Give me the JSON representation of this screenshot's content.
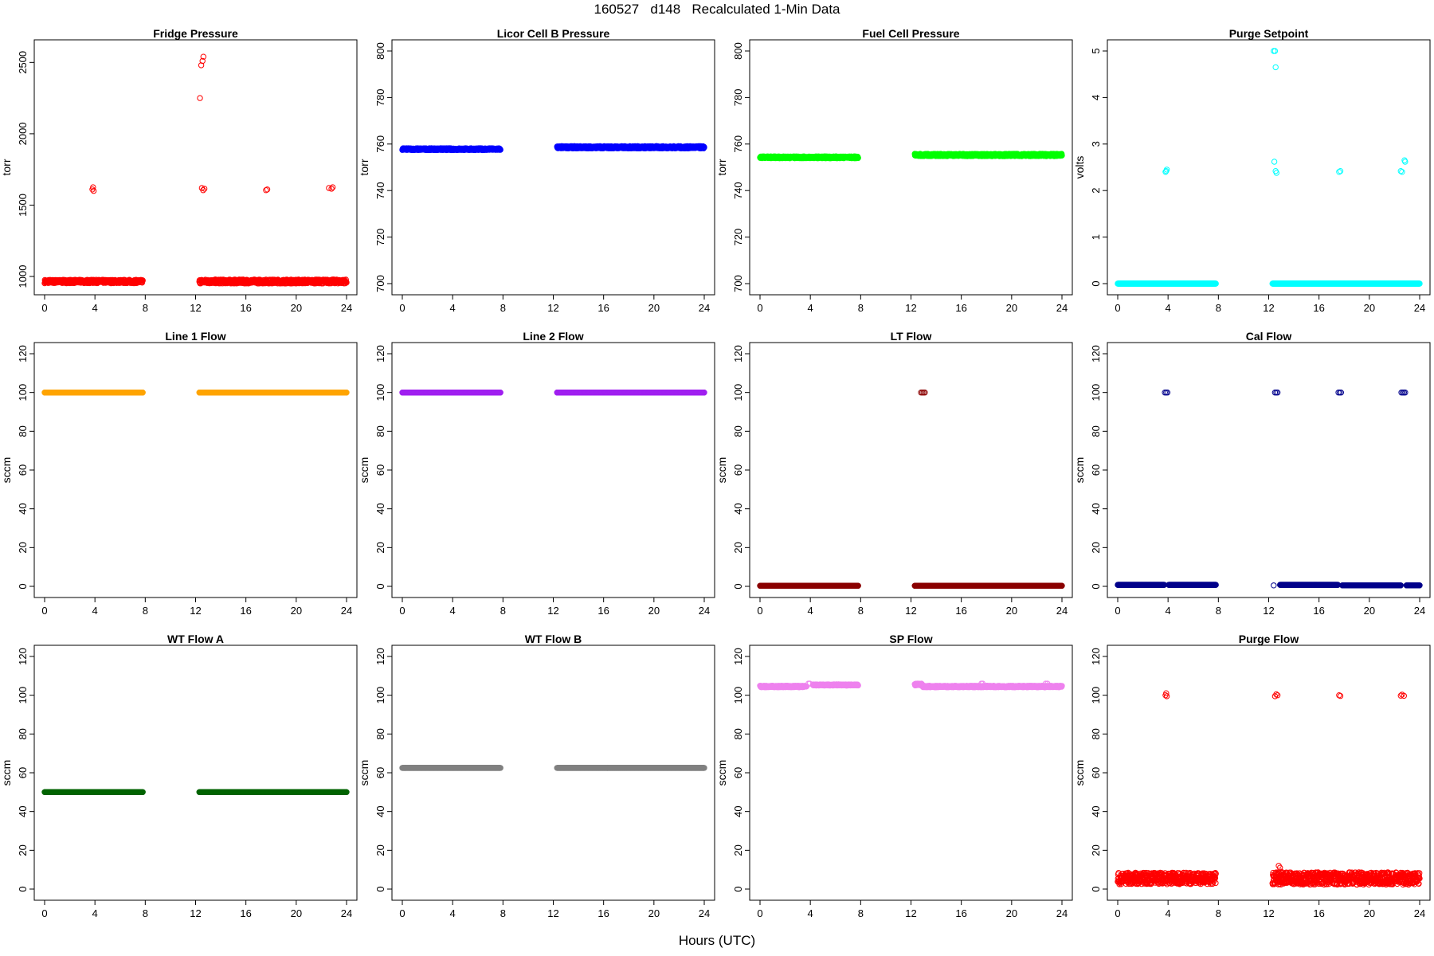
{
  "figure": {
    "title": "160527   d148   Recalculated 1-Min Data",
    "xlabel": "Hours (UTC)"
  },
  "chart_data": [
    {
      "type": "scatter",
      "title": "Fridge Pressure",
      "xlabel": "",
      "ylabel": "torr",
      "xlim": [
        0,
        24
      ],
      "ylim": [
        950,
        2580
      ],
      "xticks": [
        0,
        4,
        8,
        12,
        16,
        20,
        24
      ],
      "yticks": [
        1000,
        1500,
        2000,
        2500
      ],
      "color": "#ff0000",
      "marker": "open-circle",
      "grid": false,
      "series": [
        {
          "segments": [
            [
              0,
              7.8,
              965,
              12
            ],
            [
              12.3,
              24,
              965,
              14
            ]
          ],
          "points": [
            [
              3.8,
              1610
            ],
            [
              3.9,
              1600
            ],
            [
              3.85,
              1625
            ],
            [
              12.35,
              2250
            ],
            [
              12.45,
              2480
            ],
            [
              12.55,
              2510
            ],
            [
              12.62,
              2540
            ],
            [
              12.5,
              1620
            ],
            [
              12.6,
              1605
            ],
            [
              12.7,
              1615
            ],
            [
              17.6,
              1605
            ],
            [
              17.7,
              1610
            ],
            [
              22.6,
              1620
            ],
            [
              22.8,
              1615
            ],
            [
              22.9,
              1625
            ]
          ]
        }
      ]
    },
    {
      "type": "scatter",
      "title": "Licor Cell B Pressure",
      "xlabel": "",
      "ylabel": "torr",
      "xlim": [
        0,
        24
      ],
      "ylim": [
        700,
        800
      ],
      "xticks": [
        0,
        4,
        8,
        12,
        16,
        20,
        24
      ],
      "yticks": [
        700,
        720,
        740,
        760,
        780,
        800
      ],
      "color": "#0000ff",
      "marker": "open-circle",
      "grid": false,
      "series": [
        {
          "segments": [
            [
              0,
              7.8,
              757.8,
              0.4
            ],
            [
              12.3,
              24,
              758.6,
              0.5
            ]
          ],
          "points": []
        }
      ]
    },
    {
      "type": "scatter",
      "title": "Fuel Cell Pressure",
      "xlabel": "",
      "ylabel": "torr",
      "xlim": [
        0,
        24
      ],
      "ylim": [
        700,
        800
      ],
      "xticks": [
        0,
        4,
        8,
        12,
        16,
        20,
        24
      ],
      "yticks": [
        700,
        720,
        740,
        760,
        780,
        800
      ],
      "color": "#00ff00",
      "marker": "open-circle",
      "grid": false,
      "series": [
        {
          "segments": [
            [
              0,
              7.8,
              754.3,
              0.4
            ],
            [
              12.3,
              24,
              755.3,
              0.5
            ]
          ],
          "points": []
        }
      ]
    },
    {
      "type": "scatter",
      "title": "Purge Setpoint",
      "xlabel": "",
      "ylabel": "volts",
      "xlim": [
        0,
        24
      ],
      "ylim": [
        0,
        5
      ],
      "xticks": [
        0,
        4,
        8,
        12,
        16,
        20,
        24
      ],
      "yticks": [
        0,
        1,
        2,
        3,
        4,
        5
      ],
      "color": "#00ffff",
      "marker": "open-circle",
      "grid": false,
      "series": [
        {
          "segments": [
            [
              0,
              7.8,
              0,
              0
            ],
            [
              12.3,
              24,
              0,
              0
            ]
          ],
          "points": [
            [
              3.8,
              2.4
            ],
            [
              3.85,
              2.42
            ],
            [
              3.9,
              2.45
            ],
            [
              12.4,
              5.0
            ],
            [
              12.5,
              5.0
            ],
            [
              12.55,
              4.65
            ],
            [
              12.45,
              2.62
            ],
            [
              12.55,
              2.42
            ],
            [
              12.62,
              2.38
            ],
            [
              17.6,
              2.4
            ],
            [
              17.7,
              2.42
            ],
            [
              22.5,
              2.42
            ],
            [
              22.6,
              2.4
            ],
            [
              22.8,
              2.65
            ],
            [
              22.85,
              2.62
            ]
          ]
        }
      ]
    },
    {
      "type": "scatter",
      "title": "Line 1 Flow",
      "xlabel": "",
      "ylabel": "sccm",
      "xlim": [
        0,
        24
      ],
      "ylim": [
        0,
        120
      ],
      "xticks": [
        0,
        4,
        8,
        12,
        16,
        20,
        24
      ],
      "yticks": [
        0,
        20,
        40,
        60,
        80,
        100,
        120
      ],
      "color": "#ffa500",
      "marker": "open-circle",
      "grid": false,
      "series": [
        {
          "segments": [
            [
              0,
              7.8,
              100,
              0
            ],
            [
              12.3,
              24,
              100,
              0
            ]
          ],
          "points": []
        }
      ]
    },
    {
      "type": "scatter",
      "title": "Line 2 Flow",
      "xlabel": "",
      "ylabel": "sccm",
      "xlim": [
        0,
        24
      ],
      "ylim": [
        0,
        120
      ],
      "xticks": [
        0,
        4,
        8,
        12,
        16,
        20,
        24
      ],
      "yticks": [
        0,
        20,
        40,
        60,
        80,
        100,
        120
      ],
      "color": "#a020f0",
      "marker": "open-circle",
      "grid": false,
      "series": [
        {
          "segments": [
            [
              0,
              7.8,
              100,
              0
            ],
            [
              12.3,
              24,
              100,
              0
            ]
          ],
          "points": []
        }
      ]
    },
    {
      "type": "scatter",
      "title": "LT Flow",
      "xlabel": "",
      "ylabel": "sccm",
      "xlim": [
        0,
        24
      ],
      "ylim": [
        0,
        120
      ],
      "xticks": [
        0,
        4,
        8,
        12,
        16,
        20,
        24
      ],
      "yticks": [
        0,
        20,
        40,
        60,
        80,
        100,
        120
      ],
      "color": "#8b0000",
      "marker": "open-circle",
      "grid": false,
      "series": [
        {
          "segments": [
            [
              0,
              7.8,
              0.3,
              0
            ],
            [
              12.3,
              24,
              0.3,
              0
            ]
          ],
          "points": [
            [
              12.8,
              100
            ],
            [
              12.9,
              100
            ],
            [
              13.0,
              100
            ],
            [
              13.1,
              100
            ]
          ]
        }
      ]
    },
    {
      "type": "scatter",
      "title": "Cal Flow",
      "xlabel": "",
      "ylabel": "sccm",
      "xlim": [
        0,
        24
      ],
      "ylim": [
        0,
        120
      ],
      "xticks": [
        0,
        4,
        8,
        12,
        16,
        20,
        24
      ],
      "yticks": [
        0,
        20,
        40,
        60,
        80,
        100,
        120
      ],
      "color": "#00008b",
      "marker": "open-circle",
      "grid": false,
      "series": [
        {
          "segments": [
            [
              0,
              3.7,
              0.8,
              0
            ],
            [
              4.05,
              7.8,
              0.8,
              0
            ],
            [
              12.9,
              17.5,
              0.8,
              0
            ],
            [
              17.85,
              22.5,
              0.5,
              0
            ],
            [
              22.95,
              24,
              0.5,
              0
            ]
          ],
          "points": [
            [
              12.4,
              0.5
            ],
            [
              3.75,
              100
            ],
            [
              3.85,
              100
            ],
            [
              3.95,
              100
            ],
            [
              12.5,
              100
            ],
            [
              12.6,
              100
            ],
            [
              12.7,
              100
            ],
            [
              17.55,
              100
            ],
            [
              17.65,
              100
            ],
            [
              17.75,
              100
            ],
            [
              22.55,
              100
            ],
            [
              22.65,
              100
            ],
            [
              22.75,
              100
            ],
            [
              22.85,
              100
            ]
          ]
        }
      ]
    },
    {
      "type": "scatter",
      "title": "WT Flow A",
      "xlabel": "",
      "ylabel": "sccm",
      "xlim": [
        0,
        24
      ],
      "ylim": [
        0,
        120
      ],
      "xticks": [
        0,
        4,
        8,
        12,
        16,
        20,
        24
      ],
      "yticks": [
        0,
        20,
        40,
        60,
        80,
        100,
        120
      ],
      "color": "#006400",
      "marker": "open-circle",
      "grid": false,
      "series": [
        {
          "segments": [
            [
              0,
              7.8,
              50,
              0
            ],
            [
              12.3,
              24,
              50,
              0
            ]
          ],
          "points": []
        }
      ]
    },
    {
      "type": "scatter",
      "title": "WT Flow B",
      "xlabel": "",
      "ylabel": "sccm",
      "xlim": [
        0,
        24
      ],
      "ylim": [
        0,
        120
      ],
      "xticks": [
        0,
        4,
        8,
        12,
        16,
        20,
        24
      ],
      "yticks": [
        0,
        20,
        40,
        60,
        80,
        100,
        120
      ],
      "color": "#808080",
      "marker": "open-circle",
      "grid": false,
      "series": [
        {
          "segments": [
            [
              0,
              7.8,
              62.5,
              0
            ],
            [
              12.3,
              24,
              62.5,
              0
            ]
          ],
          "points": []
        }
      ]
    },
    {
      "type": "scatter",
      "title": "SP Flow",
      "xlabel": "",
      "ylabel": "sccm",
      "xlim": [
        0,
        24
      ],
      "ylim": [
        0,
        120
      ],
      "xticks": [
        0,
        4,
        8,
        12,
        16,
        20,
        24
      ],
      "yticks": [
        0,
        20,
        40,
        60,
        80,
        100,
        120
      ],
      "color": "#ee82ee",
      "marker": "open-circle",
      "grid": false,
      "series": [
        {
          "segments": [
            [
              0,
              3.7,
              104.5,
              0.4
            ],
            [
              4.2,
              7.8,
              105.3,
              0.3
            ],
            [
              12.3,
              12.9,
              105.5,
              0.5
            ],
            [
              12.9,
              24,
              104.5,
              0.4
            ]
          ],
          "points": [
            [
              3.85,
              106
            ],
            [
              3.95,
              106
            ],
            [
              12.5,
              106
            ],
            [
              12.6,
              106
            ],
            [
              17.6,
              106
            ],
            [
              17.7,
              106
            ],
            [
              22.7,
              106
            ],
            [
              22.85,
              106
            ]
          ]
        }
      ]
    },
    {
      "type": "scatter",
      "title": "Purge Flow",
      "xlabel": "",
      "ylabel": "sccm",
      "xlim": [
        0,
        24
      ],
      "ylim": [
        0,
        120
      ],
      "xticks": [
        0,
        4,
        8,
        12,
        16,
        20,
        24
      ],
      "yticks": [
        0,
        20,
        40,
        60,
        80,
        100,
        120
      ],
      "color": "#ff0000",
      "marker": "open-circle",
      "grid": false,
      "series": [
        {
          "segments": [
            [
              0,
              7.8,
              5.5,
              3.0
            ],
            [
              12.3,
              24,
              5.5,
              3.2
            ]
          ],
          "points": [
            [
              3.8,
              100
            ],
            [
              3.85,
              101
            ],
            [
              3.9,
              99.5
            ],
            [
              12.5,
              99.5
            ],
            [
              12.6,
              100.5
            ],
            [
              12.7,
              100
            ],
            [
              17.6,
              100
            ],
            [
              17.7,
              99.6
            ],
            [
              22.5,
              99.8
            ],
            [
              22.6,
              100.3
            ],
            [
              22.75,
              99.7
            ],
            [
              12.8,
              12
            ],
            [
              12.9,
              11
            ],
            [
              13.0,
              9
            ],
            [
              12.7,
              8
            ]
          ]
        }
      ]
    }
  ]
}
